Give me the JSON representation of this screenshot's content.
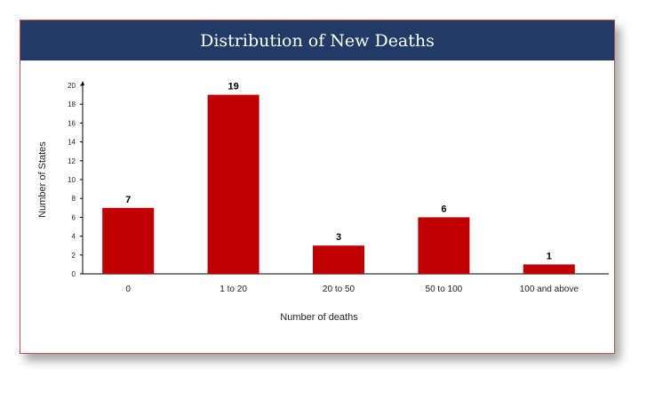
{
  "chart_data": {
    "type": "bar",
    "title": "Distribution of New Deaths",
    "xlabel": "Number of deaths",
    "ylabel": "Number of States",
    "categories": [
      "0",
      "1 to 20",
      "20 to 50",
      "50 to 100",
      "100 and above"
    ],
    "values": [
      7,
      19,
      3,
      6,
      1
    ],
    "data_labels": [
      "7",
      "19",
      "3",
      "6",
      "1"
    ],
    "ylim": [
      0,
      20
    ],
    "yticks": [
      "0",
      "2",
      "4",
      "6",
      "8",
      "10",
      "12",
      "14",
      "16",
      "18",
      "20"
    ],
    "grid": false,
    "legend": "none",
    "colors": {
      "bar": "#c00000",
      "title_bar": "#213b66",
      "border": "#c0504d"
    }
  }
}
